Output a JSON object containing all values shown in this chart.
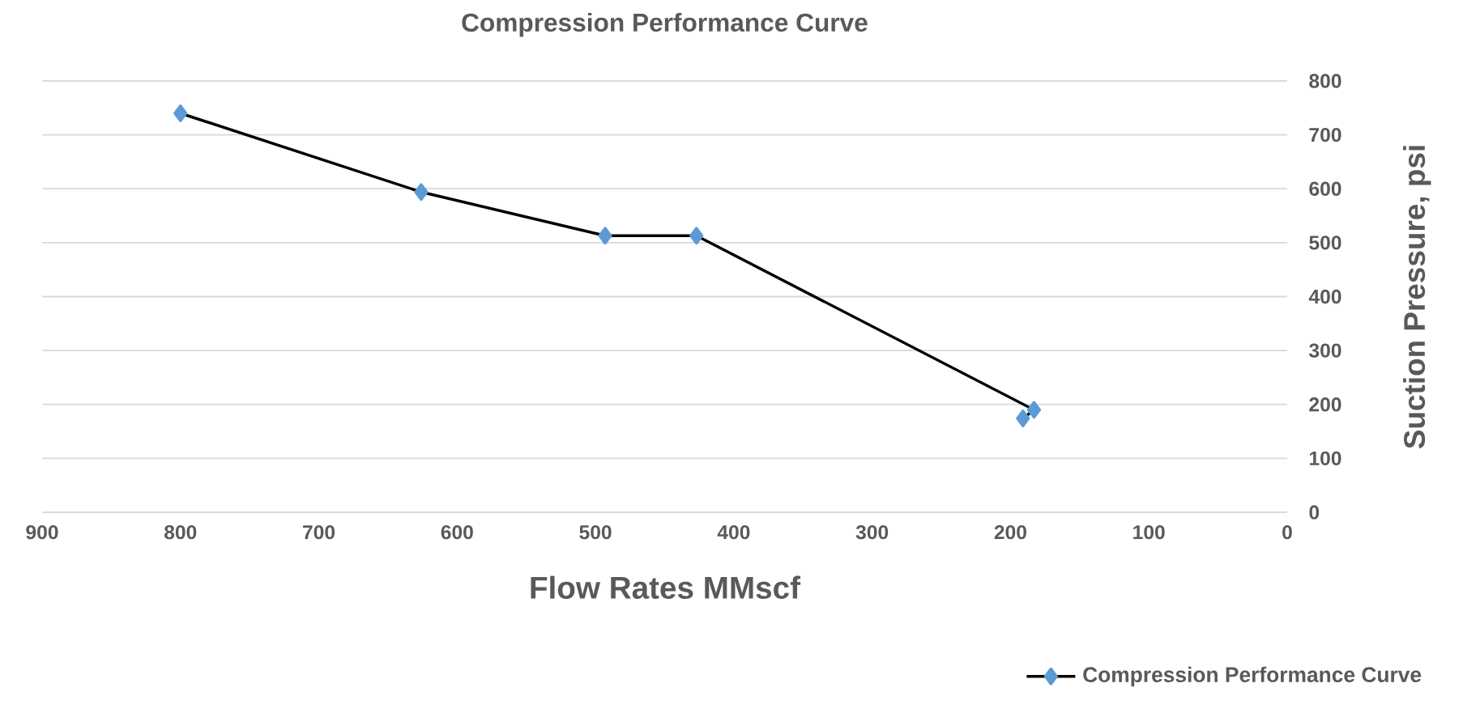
{
  "chart_data": {
    "type": "line",
    "title": "Compression Performance Curve",
    "xlabel": "Flow Rates MMscf",
    "ylabel": "Suction Pressure, psi",
    "series": [
      {
        "name": "Compression Performance Curve",
        "color": "#5b9bd5",
        "x": [
          800,
          626,
          493,
          427,
          183,
          191
        ],
        "values": [
          740,
          594,
          513,
          513,
          190,
          174
        ]
      }
    ],
    "xlim": [
      900,
      0
    ],
    "ylim": [
      0,
      800
    ],
    "xticks": [
      900,
      800,
      700,
      600,
      500,
      400,
      300,
      200,
      100,
      0
    ],
    "yticks": [
      0,
      100,
      200,
      300,
      400,
      500,
      600,
      700,
      800
    ],
    "grid": "y",
    "legend": "bottom right",
    "marker": "diamond",
    "line_style": "solid"
  }
}
